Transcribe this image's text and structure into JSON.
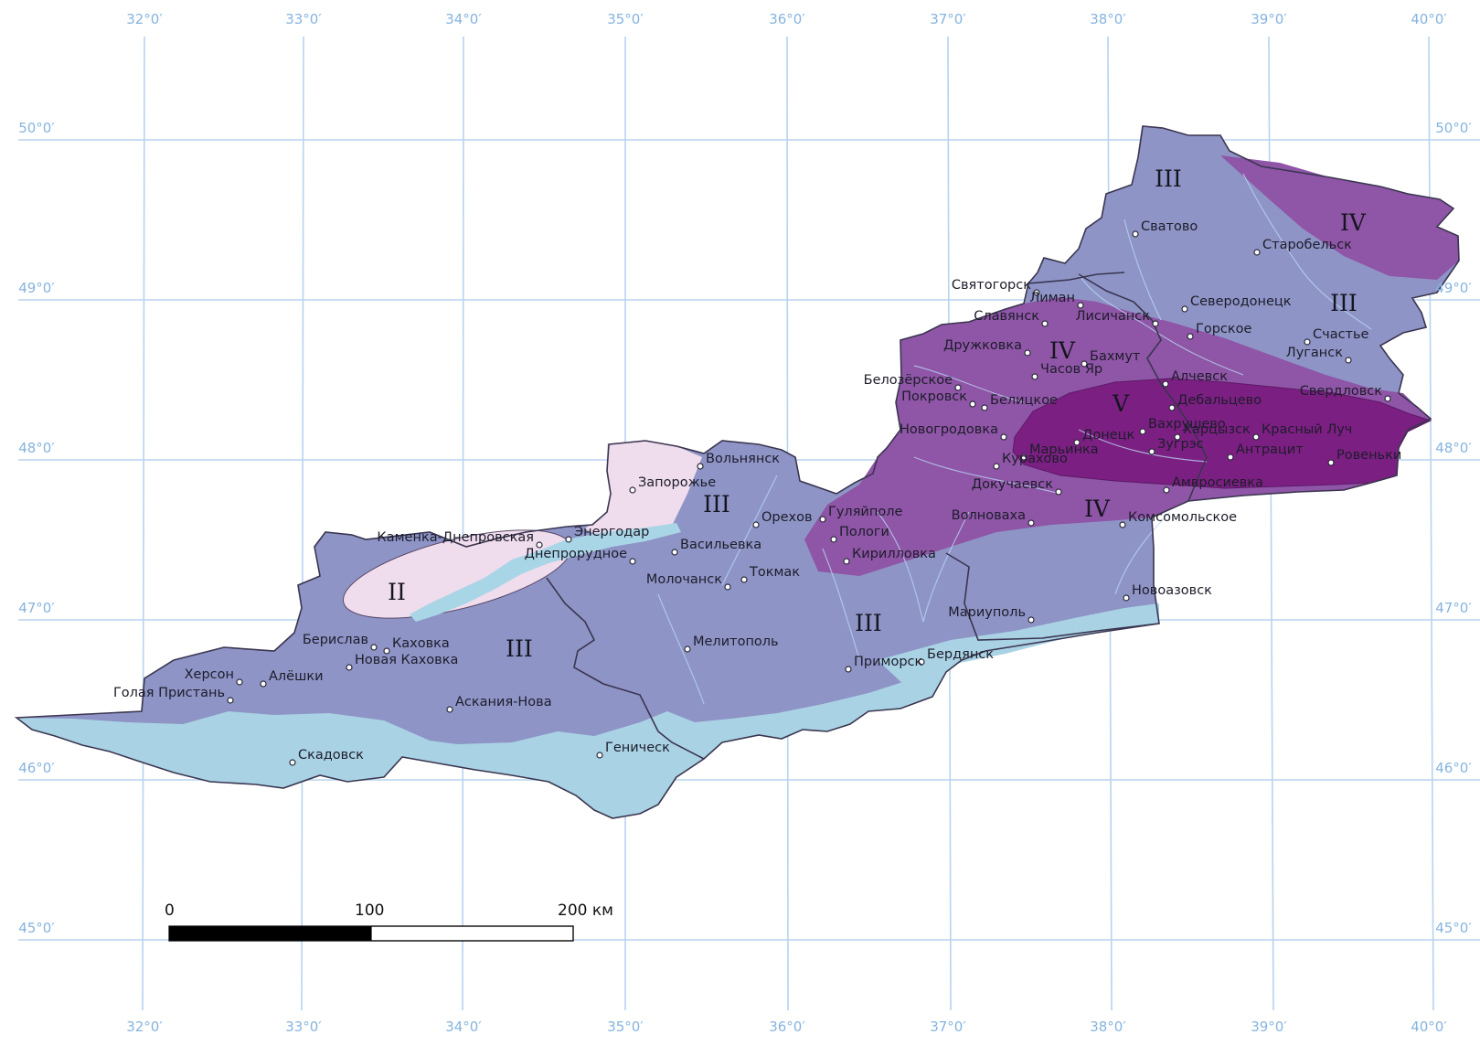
{
  "colors": {
    "background": "#ffffff",
    "grid": "#b7d3ee",
    "coord_text": "#86b4df",
    "zone_II": "#efdcec",
    "zone_III": "#8e94c6",
    "zone_IV": "#8f55a6",
    "zone_V": "#7c1f82",
    "coastal_lowland": "#a9d2e4",
    "reservoir": "#a9d6e6",
    "border": "#3a3550"
  },
  "graticule": {
    "lon_labels": [
      "32°0′",
      "33°0′",
      "34°0′",
      "35°0′",
      "36°0′",
      "37°0′",
      "38°0′",
      "39°0′",
      "40°0′"
    ],
    "lat_labels": [
      "50°0′",
      "49°0′",
      "48°0′",
      "47°0′",
      "46°0′",
      "45°0′"
    ]
  },
  "zones": [
    {
      "key": "II-a",
      "label": "II"
    },
    {
      "key": "III-a",
      "label": "III"
    },
    {
      "key": "III-b",
      "label": "III"
    },
    {
      "key": "III-c",
      "label": "III"
    },
    {
      "key": "III-d",
      "label": "III"
    },
    {
      "key": "III-e",
      "label": "III"
    },
    {
      "key": "IV-a",
      "label": "IV"
    },
    {
      "key": "IV-b",
      "label": "IV"
    },
    {
      "key": "IV-c",
      "label": "IV"
    },
    {
      "key": "V-a",
      "label": "V"
    }
  ],
  "cities": [
    {
      "key": "svatovo",
      "name": "Сватово"
    },
    {
      "key": "starobelsk",
      "name": "Старобельск"
    },
    {
      "key": "svyatogorsk",
      "name": "Святогорск"
    },
    {
      "key": "liman",
      "name": "Лиман"
    },
    {
      "key": "severodonetsk",
      "name": "Северодонецк"
    },
    {
      "key": "slavyansk",
      "name": "Славянск"
    },
    {
      "key": "lisichansk",
      "name": "Лисичанск"
    },
    {
      "key": "gorskoe",
      "name": "Горское"
    },
    {
      "key": "schastye",
      "name": "Счастье"
    },
    {
      "key": "druzhkovka",
      "name": "Дружковка"
    },
    {
      "key": "bakhmut",
      "name": "Бахмут"
    },
    {
      "key": "lugansk",
      "name": "Луганск"
    },
    {
      "key": "chasov_yar",
      "name": "Часов Яр"
    },
    {
      "key": "belozerskoe",
      "name": "Белозёрское"
    },
    {
      "key": "alchevsk",
      "name": "Алчевск"
    },
    {
      "key": "pokrovsk",
      "name": "Покровск"
    },
    {
      "key": "belitskoe",
      "name": "Белицкое"
    },
    {
      "key": "debaltsevo",
      "name": "Дебальцево"
    },
    {
      "key": "sverdlovsk",
      "name": "Свердловск"
    },
    {
      "key": "novogrodovka",
      "name": "Новогродовка"
    },
    {
      "key": "donetsk",
      "name": "Донецк"
    },
    {
      "key": "khartsyzsk",
      "name": "Харцызск"
    },
    {
      "key": "vakhrushevo",
      "name": "Вахрушево"
    },
    {
      "key": "krasny_luch",
      "name": "Красный Луч"
    },
    {
      "key": "zugres",
      "name": "Зугрэс"
    },
    {
      "key": "antratsit",
      "name": "Антрацит"
    },
    {
      "key": "rovenki",
      "name": "Ровеньки"
    },
    {
      "key": "marinka",
      "name": "Марьинка"
    },
    {
      "key": "volnyansk",
      "name": "Вольнянск"
    },
    {
      "key": "kurakhovo",
      "name": "Курахово"
    },
    {
      "key": "amvrosievka",
      "name": "Амвросиевка"
    },
    {
      "key": "zaporozhye",
      "name": "Запорожье"
    },
    {
      "key": "dokuchaevsk",
      "name": "Докучаевск"
    },
    {
      "key": "gulyaipole",
      "name": "Гуляйполе"
    },
    {
      "key": "orekhov",
      "name": "Орехов"
    },
    {
      "key": "volnovakha",
      "name": "Волноваха"
    },
    {
      "key": "komsomolskoe",
      "name": "Комсомольское"
    },
    {
      "key": "kamenka_dn",
      "name": "Каменка-Днепровская"
    },
    {
      "key": "energodar",
      "name": "Энергодар"
    },
    {
      "key": "pologi",
      "name": "Пологи"
    },
    {
      "key": "vasilyevka",
      "name": "Васильевка"
    },
    {
      "key": "dneprorudnoe",
      "name": "Днепрорудное"
    },
    {
      "key": "tokmak",
      "name": "Токмак"
    },
    {
      "key": "kirillovka",
      "name": "Кирилловка"
    },
    {
      "key": "molochansk",
      "name": "Молочанск"
    },
    {
      "key": "novoazovsk",
      "name": "Новоазовск"
    },
    {
      "key": "mariupol",
      "name": "Мариуполь"
    },
    {
      "key": "berislav",
      "name": "Берислав"
    },
    {
      "key": "kakhovka",
      "name": "Каховка"
    },
    {
      "key": "melitopol",
      "name": "Мелитополь"
    },
    {
      "key": "berdyansk",
      "name": "Бердянск"
    },
    {
      "key": "kherson",
      "name": "Херсон"
    },
    {
      "key": "aleshki",
      "name": "Алёшки"
    },
    {
      "key": "nova_kakhovka",
      "name": "Новая Каховка"
    },
    {
      "key": "primorsk",
      "name": "Приморск"
    },
    {
      "key": "golaya_pristan",
      "name": "Голая Пристань"
    },
    {
      "key": "askania_nova",
      "name": "Аскания-Нова"
    },
    {
      "key": "genichesk",
      "name": "Геническ"
    },
    {
      "key": "skadovsk",
      "name": "Скадовск"
    }
  ],
  "scale_bar": {
    "label_0": "0",
    "label_100": "100",
    "label_200": "200 км"
  }
}
